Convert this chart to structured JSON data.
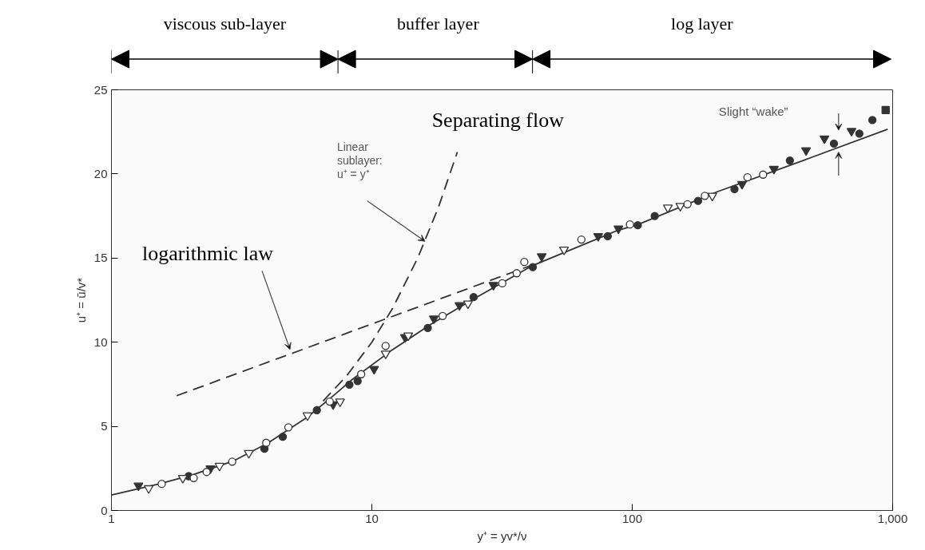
{
  "chart_data": {
    "type": "scatter",
    "xlabel": "y⁺ = yv*/ν",
    "ylabel": "u⁺ = ū/v*",
    "xlim": [
      1,
      1000
    ],
    "ylim": [
      0,
      25
    ],
    "log": "x",
    "xticks": [
      1,
      10,
      100,
      {
        "value": 1000,
        "label": "1,000"
      }
    ],
    "yticks": [
      0,
      5,
      10,
      15,
      20,
      25
    ],
    "grid": false,
    "series": [
      {
        "type": "line",
        "line_style": "solid",
        "marker": "none",
        "color": "#333333",
        "x": [
          1,
          1.53,
          2.07,
          2.95,
          3.98,
          5.66,
          7.24,
          8.34,
          11.8,
          16.8,
          25.3,
          41.5,
          88,
          105.6,
          212,
          453,
          957
        ],
        "values": [
          0.92,
          1.58,
          2.14,
          2.95,
          4.0,
          5.55,
          6.92,
          7.74,
          9.47,
          11.05,
          12.68,
          14.56,
          16.65,
          17.0,
          18.94,
          20.8,
          22.66
        ]
      },
      {
        "type": "line",
        "line_style": "dashed",
        "marker": "none",
        "color": "#333333",
        "x": [
          6.5,
          8,
          10,
          12,
          15,
          18,
          21.3
        ],
        "values": [
          6.5,
          8,
          10,
          12,
          15,
          18,
          21.3
        ]
      },
      {
        "type": "line",
        "line_style": "dashed",
        "marker": "none",
        "color": "#333333",
        "x": [
          1.78,
          45
        ],
        "values": [
          6.82,
          14.8
        ]
      },
      {
        "marker": "circle",
        "color": "#ffffff",
        "x": [
          1.56,
          2.07,
          2.32,
          2.91,
          3.93,
          4.78,
          6.89,
          9.1,
          11.3,
          18.7,
          31.7,
          36,
          38.5,
          63.8,
          98,
          163,
          190,
          277,
          318
        ],
        "values": [
          1.58,
          1.93,
          2.29,
          2.9,
          4.02,
          4.94,
          6.47,
          8.1,
          9.78,
          11.56,
          13.5,
          14.1,
          14.77,
          16.1,
          17.0,
          18.2,
          18.7,
          19.8,
          19.96
        ]
      },
      {
        "marker": "circle",
        "color": "#333333",
        "x": [
          1.98,
          3.87,
          4.55,
          6.15,
          8.2,
          8.82,
          16.4,
          24.6,
          41.5,
          80.5,
          105,
          122,
          179,
          247,
          403,
          595,
          745,
          836
        ],
        "values": [
          2.04,
          3.67,
          4.38,
          5.96,
          7.48,
          7.69,
          10.85,
          12.68,
          14.46,
          16.3,
          16.95,
          17.5,
          18.4,
          19.1,
          20.8,
          21.8,
          22.4,
          23.2
        ]
      },
      {
        "marker": "triangle",
        "color": "#333333",
        "x": [
          1.27,
          2.4,
          7.1,
          10.2,
          13.4,
          17.3,
          21.7,
          29.3,
          44.9,
          74,
          88.5,
          264,
          350,
          465,
          547,
          695
        ],
        "values": [
          1.48,
          2.5,
          6.3,
          8.4,
          10.3,
          11.4,
          12.2,
          13.4,
          15.1,
          16.3,
          16.75,
          19.4,
          20.3,
          21.4,
          22.1,
          22.55
        ]
      },
      {
        "marker": "triangle",
        "color": "#ffffff",
        "x": [
          1.39,
          1.88,
          2.6,
          3.37,
          5.66,
          7.55,
          11.3,
          13.8,
          23.4,
          54.7,
          137,
          153,
          203
        ],
        "values": [
          1.32,
          1.93,
          2.65,
          3.41,
          5.65,
          6.47,
          9.32,
          10.4,
          12.3,
          15.5,
          18.0,
          18.1,
          18.7
        ]
      },
      {
        "marker": "square",
        "color": "#333333",
        "x": [
          940
        ],
        "values": [
          23.8
        ]
      }
    ],
    "annotations": [
      "Linear\nsublayer:\nu⁺ = y⁺",
      {
        "text": "logarithmic law",
        "x": 4.85,
        "y": 9.57
      },
      "Separating flow",
      "Slight “wake”",
      "viscous sub-layer",
      "buffer layer",
      "log layer"
    ]
  }
}
